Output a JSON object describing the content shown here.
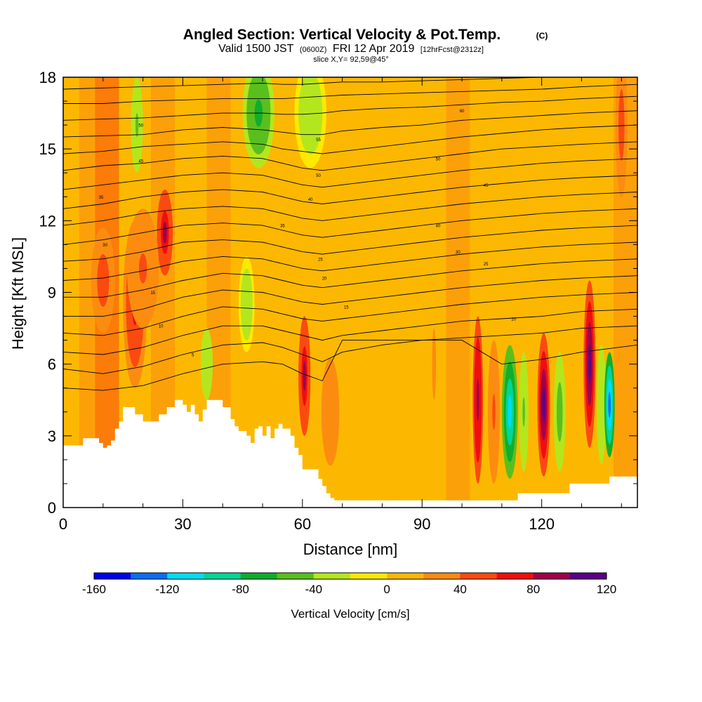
{
  "title": {
    "main": "Angled Section: Vertical Velocity & Pot.Temp.",
    "unit": "(C)",
    "valid_prefix": "Valid 1500 JST",
    "valid_zulu": "(0600Z)",
    "valid_date": "FRI 12 Apr 2019",
    "forecast": "[12hrFcst@2312z]",
    "slice": "slice X,Y= 92,59@45°"
  },
  "chart_data": {
    "type": "heatmap",
    "description_fields": "filled contours of vertical velocity with potential temperature isolines over terrain",
    "xlabel": "Distance [nm]",
    "ylabel": "Height [Kft MSL]",
    "xlim": [
      0,
      144
    ],
    "ylim": [
      0,
      18
    ],
    "x_ticks": [
      0,
      30,
      60,
      90,
      120
    ],
    "y_ticks": [
      0,
      3,
      6,
      9,
      12,
      15,
      18
    ],
    "colorbar": {
      "title": "Vertical Velocity [cm/s]",
      "levels": [
        -160,
        -140,
        -120,
        -100,
        -80,
        -60,
        -40,
        -20,
        0,
        20,
        40,
        60,
        80,
        100,
        120
      ],
      "labels": [
        "-160",
        "-120",
        "-80",
        "-40",
        "0",
        "40",
        "80",
        "120"
      ],
      "colors": [
        "#0000ee",
        "#0a6ef0",
        "#00ddf5",
        "#00d59a",
        "#0fae2c",
        "#5abf1e",
        "#b4e61e",
        "#fde900",
        "#fcb800",
        "#fc8c10",
        "#fa4a10",
        "#ee0f10",
        "#a0004a",
        "#5a0088"
      ]
    },
    "terrain_profile_kft": {
      "x": [
        0,
        5,
        9,
        10,
        11,
        12,
        13,
        14,
        15,
        16,
        17,
        18,
        19,
        20,
        22,
        24,
        26,
        28,
        30,
        31,
        32,
        33,
        34,
        35,
        36,
        37,
        38,
        40,
        42,
        43,
        44,
        45,
        46,
        47,
        48,
        49,
        50,
        51,
        52,
        53,
        54,
        55,
        56,
        57,
        58,
        59,
        60,
        61,
        62,
        63,
        64,
        65,
        66,
        67,
        68,
        70,
        80,
        90,
        100,
        105,
        110,
        113,
        114,
        120,
        125,
        127,
        130,
        135,
        137,
        138,
        141,
        144
      ],
      "y": [
        2.6,
        2.9,
        2.7,
        2.5,
        2.6,
        2.8,
        3.3,
        3.6,
        4.2,
        4.2,
        4.2,
        3.9,
        3.9,
        3.6,
        3.6,
        3.9,
        4.2,
        4.5,
        4.3,
        4.0,
        4.3,
        3.9,
        3.6,
        4.1,
        4.5,
        4.5,
        4.5,
        4.2,
        3.7,
        3.4,
        3.2,
        3.2,
        3.0,
        2.7,
        3.3,
        3.4,
        3.0,
        3.4,
        2.9,
        3.3,
        3.5,
        3.3,
        3.3,
        3.0,
        2.5,
        2.2,
        1.6,
        1.6,
        1.6,
        1.6,
        1.2,
        0.9,
        0.6,
        0.4,
        0.3,
        0.3,
        0.3,
        0.3,
        0.3,
        0.3,
        0.3,
        0.3,
        0.6,
        0.6,
        0.6,
        1.0,
        1.0,
        1.0,
        1.3,
        1.3,
        1.3,
        1.3
      ]
    },
    "velocity_features": [
      {
        "x_center": 10,
        "y_center": 9.5,
        "half_width": 3,
        "half_height": 2.2,
        "value": 55
      },
      {
        "x_center": 18,
        "y_center": 8.5,
        "half_width": 3,
        "half_height": 3.5,
        "value": 65
      },
      {
        "x_center": 25.5,
        "y_center": 11.5,
        "half_width": 2,
        "half_height": 1.8,
        "value": 85
      },
      {
        "x_center": 20,
        "y_center": 10,
        "half_width": 4,
        "half_height": 2.5,
        "value": 45
      },
      {
        "x_center": 18.5,
        "y_center": 16,
        "half_width": 1.5,
        "half_height": 2,
        "value": -45
      },
      {
        "x_center": 36,
        "y_center": 6.0,
        "half_width": 1.5,
        "half_height": 1.5,
        "value": -40
      },
      {
        "x_center": 46,
        "y_center": 8.5,
        "half_width": 2,
        "half_height": 2,
        "value": -35
      },
      {
        "x_center": 49,
        "y_center": 16.5,
        "half_width": 4,
        "half_height": 2.3,
        "value": -65
      },
      {
        "x_center": 62,
        "y_center": 16.5,
        "half_width": 4,
        "half_height": 2.3,
        "value": -35
      },
      {
        "x_center": 60.5,
        "y_center": 5.5,
        "half_width": 1.5,
        "half_height": 2.5,
        "value": 80
      },
      {
        "x_center": 67,
        "y_center": 4,
        "half_width": 3,
        "half_height": 3,
        "value": 35
      },
      {
        "x_center": 93,
        "y_center": 6,
        "half_width": 2,
        "half_height": 6,
        "value": 20
      },
      {
        "x_center": 104,
        "y_center": 4.5,
        "half_width": 1.3,
        "half_height": 3.5,
        "value": 90
      },
      {
        "x_center": 108,
        "y_center": 4,
        "half_width": 1.5,
        "half_height": 3,
        "value": 45
      },
      {
        "x_center": 112,
        "y_center": 4,
        "half_width": 2,
        "half_height": 2.8,
        "value": -110
      },
      {
        "x_center": 115.5,
        "y_center": 4,
        "half_width": 1.2,
        "half_height": 2.5,
        "value": -45
      },
      {
        "x_center": 120.5,
        "y_center": 4.3,
        "half_width": 1.6,
        "half_height": 3,
        "value": 115
      },
      {
        "x_center": 124.5,
        "y_center": 4,
        "half_width": 1.5,
        "half_height": 2.5,
        "value": -55
      },
      {
        "x_center": 132,
        "y_center": 6,
        "half_width": 1.5,
        "half_height": 3.5,
        "value": 100
      },
      {
        "x_center": 135,
        "y_center": 4.3,
        "half_width": 1.2,
        "half_height": 2.5,
        "value": -40
      },
      {
        "x_center": 137,
        "y_center": 4.3,
        "half_width": 1.3,
        "half_height": 2.2,
        "value": -140
      },
      {
        "x_center": 140,
        "y_center": 16,
        "half_width": 1.5,
        "half_height": 3,
        "value": 50
      }
    ],
    "isentropes_kft": {
      "x": [
        0,
        10,
        20,
        30,
        40,
        50,
        55,
        60,
        65,
        70,
        80,
        90,
        100,
        110,
        120,
        130,
        144
      ],
      "lines": [
        [
          17.5,
          17.55,
          17.6,
          17.65,
          17.7,
          17.75,
          17.7,
          17.7,
          17.75,
          17.8,
          17.8,
          17.85,
          17.9,
          17.95,
          18.0,
          18.0,
          18.0
        ],
        [
          16.9,
          16.9,
          17.0,
          17.05,
          17.1,
          17.1,
          17.1,
          17.15,
          17.2,
          17.25,
          17.3,
          17.35,
          17.4,
          17.45,
          17.5,
          17.6,
          17.7
        ],
        [
          16.2,
          16.25,
          16.3,
          16.4,
          16.5,
          16.5,
          16.45,
          16.45,
          16.5,
          16.6,
          16.7,
          16.75,
          16.85,
          16.95,
          17.0,
          17.1,
          17.2
        ],
        [
          15.5,
          15.55,
          15.6,
          15.8,
          15.9,
          15.8,
          15.7,
          15.6,
          15.6,
          15.75,
          15.9,
          16.0,
          16.2,
          16.3,
          16.4,
          16.5,
          16.6
        ],
        [
          14.8,
          14.9,
          15.1,
          15.2,
          15.3,
          15.2,
          15.0,
          14.9,
          14.8,
          14.9,
          15.1,
          15.3,
          15.5,
          15.65,
          15.8,
          15.9,
          16.0
        ],
        [
          14.1,
          14.3,
          14.4,
          14.6,
          14.7,
          14.6,
          14.4,
          14.2,
          14.1,
          14.2,
          14.4,
          14.6,
          14.8,
          15.0,
          15.1,
          15.2,
          15.3
        ],
        [
          13.3,
          13.5,
          13.7,
          13.9,
          14.0,
          13.9,
          13.7,
          13.5,
          13.4,
          13.5,
          13.7,
          13.9,
          14.1,
          14.25,
          14.4,
          14.5,
          14.6
        ],
        [
          12.5,
          12.7,
          13.0,
          13.2,
          13.3,
          13.2,
          13.0,
          12.8,
          12.7,
          12.8,
          13.0,
          13.2,
          13.4,
          13.55,
          13.7,
          13.8,
          13.9
        ],
        [
          11.8,
          12.0,
          12.3,
          12.5,
          12.6,
          12.5,
          12.3,
          12.1,
          12.0,
          12.1,
          12.3,
          12.5,
          12.7,
          12.85,
          13.0,
          13.1,
          13.2
        ],
        [
          11.0,
          11.2,
          11.5,
          11.8,
          11.9,
          11.8,
          11.6,
          11.4,
          11.3,
          11.4,
          11.6,
          11.8,
          12.0,
          12.15,
          12.3,
          12.4,
          12.5
        ],
        [
          10.3,
          10.4,
          10.7,
          11.1,
          11.2,
          11.1,
          10.9,
          10.7,
          10.6,
          10.7,
          10.9,
          11.1,
          11.3,
          11.45,
          11.6,
          11.7,
          11.8
        ],
        [
          9.5,
          9.6,
          9.9,
          10.3,
          10.5,
          10.4,
          10.2,
          10.0,
          9.9,
          10.0,
          10.2,
          10.4,
          10.6,
          10.75,
          10.9,
          11.0,
          11.1
        ],
        [
          8.8,
          8.8,
          9.1,
          9.5,
          9.8,
          9.7,
          9.5,
          9.3,
          9.2,
          9.3,
          9.5,
          9.7,
          9.9,
          10.05,
          10.2,
          10.3,
          10.4
        ],
        [
          8.0,
          8.0,
          8.3,
          8.8,
          9.1,
          9.0,
          8.8,
          8.6,
          8.5,
          8.6,
          8.8,
          9.0,
          9.2,
          9.35,
          9.5,
          9.6,
          9.7
        ],
        [
          7.3,
          7.2,
          7.5,
          8.0,
          8.4,
          8.3,
          8.1,
          7.9,
          7.8,
          7.9,
          8.1,
          8.3,
          8.5,
          8.65,
          8.8,
          8.9,
          9.0
        ],
        [
          6.5,
          6.4,
          6.7,
          7.2,
          7.6,
          7.6,
          7.4,
          7.2,
          7.0,
          7.2,
          7.4,
          7.6,
          7.8,
          7.9,
          8.0,
          8.2,
          8.3
        ],
        [
          5.8,
          5.6,
          5.9,
          6.4,
          6.8,
          6.9,
          6.7,
          6.4,
          6.1,
          6.5,
          6.8,
          7.0,
          7.1,
          7.2,
          7.3,
          7.5,
          7.6
        ],
        [
          5.0,
          4.9,
          5.1,
          5.6,
          6.0,
          6.1,
          6.0,
          5.6,
          5.3,
          7.0,
          7.0,
          7.0,
          7.0,
          6.0,
          6.2,
          6.5,
          6.8
        ]
      ]
    },
    "isentrope_labels": [
      {
        "x": 19.5,
        "y": 16.0,
        "text": "50"
      },
      {
        "x": 19.5,
        "y": 14.5,
        "text": "45"
      },
      {
        "x": 9.5,
        "y": 13.0,
        "text": "35"
      },
      {
        "x": 10.5,
        "y": 11.0,
        "text": "30"
      },
      {
        "x": 22.5,
        "y": 9.0,
        "text": "15"
      },
      {
        "x": 24.5,
        "y": 7.6,
        "text": "10"
      },
      {
        "x": 32.5,
        "y": 6.4,
        "text": "5"
      },
      {
        "x": 64,
        "y": 15.4,
        "text": "55"
      },
      {
        "x": 64,
        "y": 13.9,
        "text": "50"
      },
      {
        "x": 62,
        "y": 12.9,
        "text": "40"
      },
      {
        "x": 55,
        "y": 11.8,
        "text": "35"
      },
      {
        "x": 64.5,
        "y": 10.4,
        "text": "25"
      },
      {
        "x": 65.5,
        "y": 9.6,
        "text": "20"
      },
      {
        "x": 71,
        "y": 8.4,
        "text": "15"
      },
      {
        "x": 100,
        "y": 16.6,
        "text": "60"
      },
      {
        "x": 94,
        "y": 14.6,
        "text": "50"
      },
      {
        "x": 106,
        "y": 13.5,
        "text": "45"
      },
      {
        "x": 94,
        "y": 11.8,
        "text": "40"
      },
      {
        "x": 99,
        "y": 10.7,
        "text": "30"
      },
      {
        "x": 106,
        "y": 10.2,
        "text": "25"
      },
      {
        "x": 113,
        "y": 7.9,
        "text": "20"
      }
    ]
  }
}
